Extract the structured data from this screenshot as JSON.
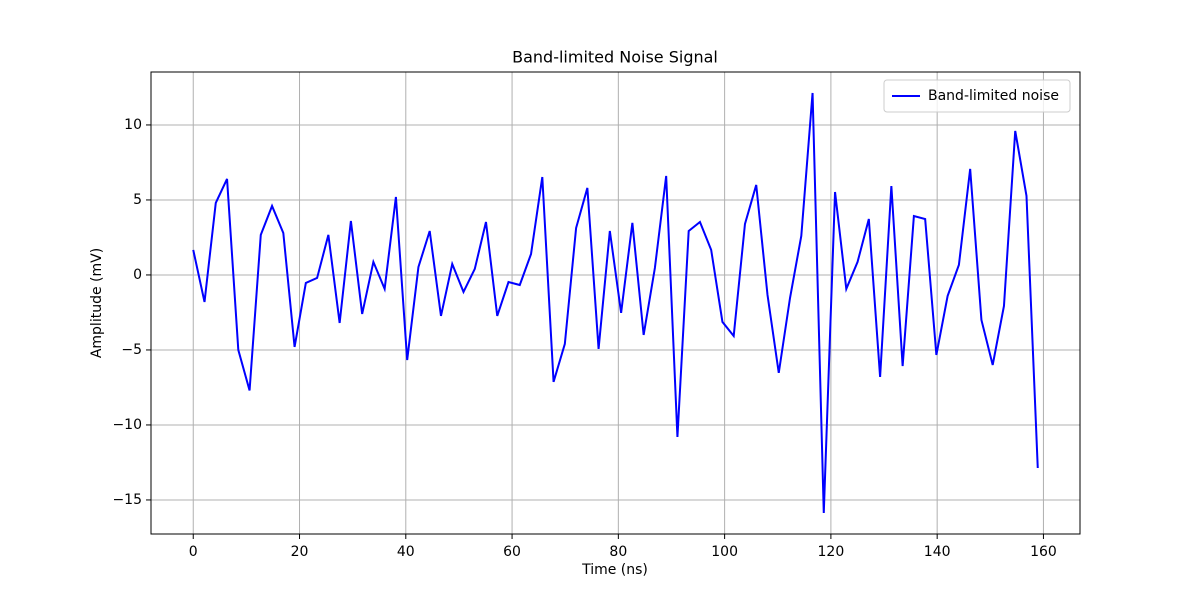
{
  "chart_data": {
    "type": "line",
    "title": "Band-limited Noise Signal",
    "x_label": "Time (ns)",
    "y_label": "Amplitude (mV)",
    "x": [
      0,
      2.12,
      4.24,
      6.36,
      8.48,
      10.6,
      12.71,
      14.83,
      16.95,
      19.07,
      21.19,
      23.31,
      25.43,
      27.55,
      29.67,
      31.79,
      33.9,
      36.02,
      38.14,
      40.26,
      42.38,
      44.5,
      46.62,
      48.74,
      50.86,
      52.98,
      55.09,
      57.21,
      59.33,
      61.45,
      63.57,
      65.69,
      67.81,
      69.93,
      72.05,
      74.17,
      76.28,
      78.4,
      80.52,
      82.64,
      84.76,
      86.88,
      89.0,
      91.12,
      93.24,
      95.36,
      97.47,
      99.59,
      101.71,
      103.83,
      105.95,
      108.07,
      110.19,
      112.31,
      114.43,
      116.55,
      118.66,
      120.78,
      122.9,
      125.02,
      127.14,
      129.26,
      131.38,
      133.5,
      135.62,
      137.74,
      139.85,
      141.97,
      144.09,
      146.21,
      148.33,
      150.45,
      152.57,
      154.69,
      156.81,
      158.93
    ],
    "series": [
      {
        "name": "Band-limited noise",
        "color": "#0000ff",
        "values": [
          1.67,
          -1.8,
          4.8,
          6.4,
          -5.0,
          -7.7,
          2.67,
          4.6,
          2.8,
          -4.8,
          -0.53,
          -0.2,
          2.67,
          -3.2,
          3.6,
          -2.6,
          0.87,
          -0.93,
          5.2,
          -5.67,
          0.53,
          2.93,
          -2.73,
          0.73,
          -1.13,
          0.4,
          3.53,
          -2.73,
          -0.47,
          -0.67,
          1.4,
          6.53,
          -7.13,
          -4.6,
          3.13,
          5.8,
          -4.93,
          2.93,
          -2.53,
          3.47,
          -4.0,
          0.47,
          6.6,
          -10.8,
          2.93,
          3.53,
          1.67,
          -3.13,
          -4.07,
          3.4,
          6.0,
          -1.33,
          -6.53,
          -1.53,
          2.6,
          12.13,
          -15.87,
          5.53,
          -0.93,
          0.87,
          3.73,
          -6.8,
          5.93,
          -6.07,
          3.93,
          3.73,
          -5.33,
          -1.4,
          0.67,
          7.07,
          -3.0,
          -6.0,
          -2.07,
          9.6,
          5.27,
          -12.87
        ]
      }
    ],
    "xlim": [
      -7.95,
      166.88
    ],
    "ylim": [
      -17.27,
      13.53
    ],
    "xticks": [
      0,
      20,
      40,
      60,
      80,
      100,
      120,
      140,
      160
    ],
    "yticks": [
      {
        "value": -15,
        "label": "−15"
      },
      {
        "value": -10,
        "label": "−10"
      },
      {
        "value": -5,
        "label": "−5"
      },
      0,
      5,
      10
    ],
    "grid": true,
    "legend": "upper right"
  }
}
